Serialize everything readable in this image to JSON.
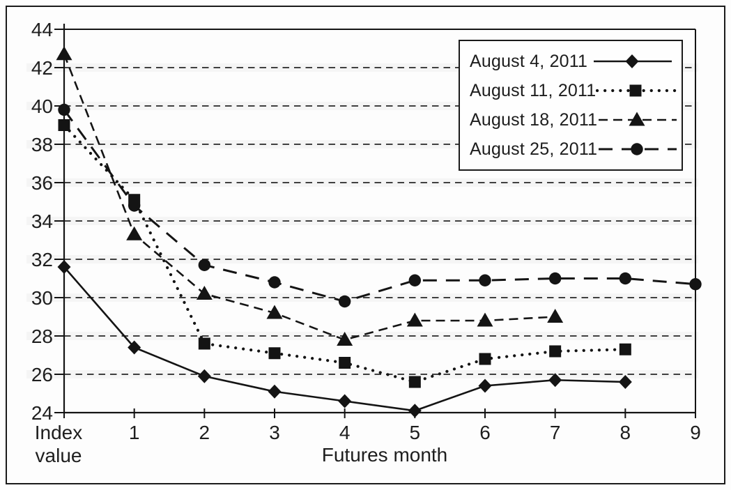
{
  "figure": {
    "title": "",
    "xlabel": "Futures month",
    "x_tick_labels": [
      "Index value",
      "1",
      "2",
      "3",
      "4",
      "5",
      "6",
      "7",
      "8",
      "9"
    ],
    "y_tick_labels": [
      "44",
      "42",
      "40",
      "38",
      "36",
      "34",
      "32",
      "30",
      "28",
      "26",
      "24"
    ],
    "ink_color": "#141414",
    "paper_color": "#fdfdfd",
    "band_color": "#efefef"
  },
  "chart_data": {
    "type": "line",
    "categories": [
      "Index value",
      "1",
      "2",
      "3",
      "4",
      "5",
      "6",
      "7",
      "8",
      "9"
    ],
    "series": [
      {
        "name": "August 4, 2011",
        "marker": "diamond",
        "line": "solid",
        "values": [
          31.6,
          27.4,
          25.9,
          25.1,
          24.6,
          24.1,
          25.4,
          25.7,
          25.6,
          null
        ]
      },
      {
        "name": "August 11, 2011",
        "marker": "square",
        "line": "dotted",
        "values": [
          39.0,
          35.1,
          27.6,
          27.1,
          26.6,
          25.6,
          26.8,
          27.2,
          27.3,
          null
        ]
      },
      {
        "name": "August 18, 2011",
        "marker": "triangle",
        "line": "dashed",
        "values": [
          42.7,
          33.3,
          30.2,
          29.2,
          27.8,
          28.8,
          28.8,
          29.0,
          null,
          null
        ]
      },
      {
        "name": "August 25, 2011",
        "marker": "circle",
        "line": "longdash",
        "values": [
          39.8,
          34.8,
          31.7,
          30.8,
          29.8,
          30.9,
          30.9,
          31.0,
          31.0,
          30.7
        ]
      }
    ],
    "title": "",
    "xlabel": "Futures month",
    "ylabel": "",
    "ylim": [
      24,
      44
    ],
    "y_ticks": [
      44,
      42,
      40,
      38,
      36,
      34,
      32,
      30,
      28,
      26,
      24
    ],
    "grid": "horizontal-dashed",
    "legend_position": "top-right",
    "line_color": "#141414"
  }
}
